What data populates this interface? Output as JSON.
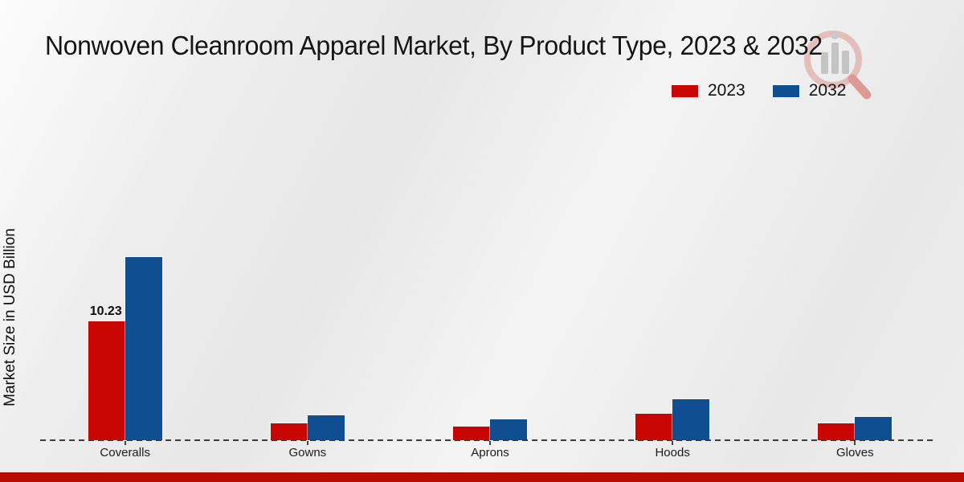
{
  "chart_data": {
    "type": "bar",
    "title": "Nonwoven Cleanroom Apparel Market, By Product Type, 2023 & 2032",
    "ylabel": "Market Size in USD Billion",
    "xlabel": "",
    "categories": [
      "Coveralls",
      "Gowns",
      "Aprons",
      "Hoods",
      "Gloves"
    ],
    "series": [
      {
        "name": "2023",
        "color": "#c90502",
        "values": [
          10.23,
          1.45,
          1.2,
          2.3,
          1.45
        ]
      },
      {
        "name": "2032",
        "color": "#0f4e90",
        "values": [
          15.74,
          2.15,
          1.8,
          3.53,
          2.03
        ]
      }
    ],
    "data_labels": [
      {
        "category": "Coveralls",
        "series": "2023",
        "text": "10.23"
      }
    ],
    "ylim": [
      0,
      16.5
    ],
    "grid": false,
    "axis_style": "dashed-baseline-only",
    "legend_position": "top-right"
  },
  "branding": {
    "accent_bar_color": "#b80c01",
    "watermark": "magnifier-bar-chart-logo"
  }
}
